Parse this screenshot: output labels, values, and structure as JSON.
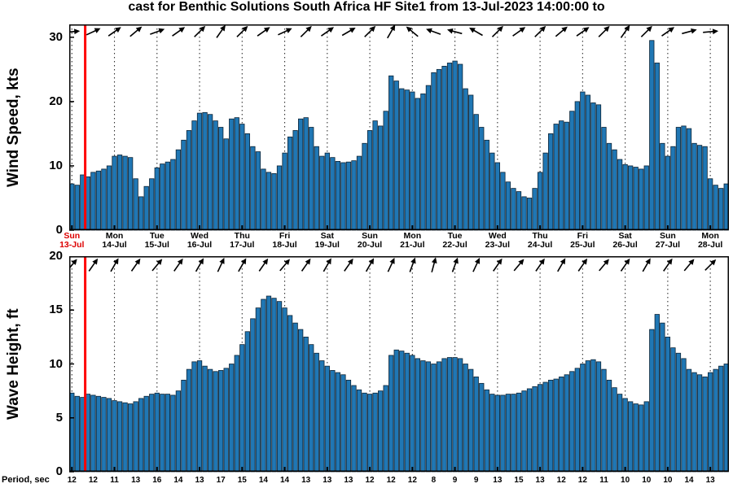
{
  "title": "cast for Benthic Solutions South Africa HF Site1 from 13-Jul-2023 14:00:00 to",
  "colors": {
    "bar_fill": "#2077b4",
    "bar_edge": "#0d2436",
    "red_line": "#ff0000",
    "grid": "#333333",
    "axis": "#000000",
    "highlight_label": "#dd0000"
  },
  "red_line_index": 3,
  "x_axis": {
    "start": "13-Jul-2023 12:00",
    "bar_interval_hours": 3,
    "arrow_interval_hours": 12,
    "day_labels": [
      {
        "day": "Sun",
        "date": "13-Jul",
        "highlight": true
      },
      {
        "day": "Mon",
        "date": "14-Jul",
        "highlight": false
      },
      {
        "day": "Tue",
        "date": "15-Jul",
        "highlight": false
      },
      {
        "day": "Wed",
        "date": "16-Jul",
        "highlight": false
      },
      {
        "day": "Thu",
        "date": "17-Jul",
        "highlight": false
      },
      {
        "day": "Fri",
        "date": "18-Jul",
        "highlight": false
      },
      {
        "day": "Sat",
        "date": "19-Jul",
        "highlight": false
      },
      {
        "day": "Sun",
        "date": "20-Jul",
        "highlight": false
      },
      {
        "day": "Mon",
        "date": "21-Jul",
        "highlight": false
      },
      {
        "day": "Tue",
        "date": "22-Jul",
        "highlight": false
      },
      {
        "day": "Wed",
        "date": "23-Jul",
        "highlight": false
      },
      {
        "day": "Thu",
        "date": "24-Jul",
        "highlight": false
      },
      {
        "day": "Fri",
        "date": "25-Jul",
        "highlight": false
      },
      {
        "day": "Sat",
        "date": "26-Jul",
        "highlight": false
      },
      {
        "day": "Sun",
        "date": "27-Jul",
        "highlight": false
      },
      {
        "day": "Mon",
        "date": "28-Jul",
        "highlight": false
      }
    ]
  },
  "chart_data": [
    {
      "type": "bar",
      "name": "wind-speed",
      "ylabel": "Wind Speed, kts",
      "ylim": [
        0,
        32
      ],
      "yticks": [
        0,
        10,
        20,
        30
      ],
      "grid": "vertical-dotted-daily",
      "legend_position": "none",
      "values": [
        7.2,
        7.0,
        8.6,
        8.3,
        9.0,
        9.2,
        9.5,
        10.0,
        11.5,
        11.7,
        11.5,
        11.3,
        8.0,
        5.2,
        6.8,
        8.0,
        9.7,
        10.3,
        10.6,
        11.0,
        12.5,
        14.0,
        15.5,
        17.0,
        18.2,
        18.3,
        18.0,
        17.0,
        16.0,
        14.2,
        17.3,
        17.5,
        16.5,
        15.0,
        13.0,
        12.2,
        9.5,
        9.0,
        8.8,
        10.0,
        12.0,
        14.5,
        15.5,
        17.3,
        17.5,
        16.0,
        13.0,
        11.5,
        12.0,
        11.3,
        10.7,
        10.5,
        10.6,
        10.8,
        11.5,
        13.5,
        15.5,
        17.0,
        16.2,
        18.5,
        24.0,
        23.2,
        22.0,
        21.8,
        21.5,
        20.5,
        21.2,
        22.5,
        24.5,
        25.0,
        25.5,
        26.0,
        26.3,
        25.8,
        22.0,
        21.0,
        18.0,
        16.0,
        14.0,
        12.0,
        10.5,
        9.0,
        7.5,
        6.5,
        6.0,
        5.2,
        5.0,
        6.5,
        9.0,
        12.0,
        15.0,
        16.5,
        17.0,
        16.8,
        18.5,
        20.0,
        21.5,
        21.0,
        19.8,
        19.5,
        16.0,
        13.5,
        12.5,
        11.0,
        10.2,
        10.0,
        9.8,
        9.5,
        10.0,
        29.5,
        26.0,
        13.5,
        11.5,
        13.0,
        16.0,
        16.2,
        15.8,
        13.5,
        13.2,
        13.0,
        8.0,
        7.0,
        6.5,
        7.2
      ],
      "direction_arrows_deg": [
        5,
        25,
        35,
        40,
        20,
        35,
        45,
        55,
        45,
        35,
        25,
        45,
        35,
        30,
        45,
        60,
        140,
        160,
        165,
        150,
        45,
        35,
        45,
        40,
        35,
        45,
        55,
        45,
        35,
        15,
        5
      ]
    },
    {
      "type": "bar",
      "name": "wave-height",
      "ylabel": "Wave Height, ft",
      "ylim": [
        0,
        20
      ],
      "yticks": [
        0,
        5,
        10,
        15,
        20
      ],
      "grid": "vertical-dotted-daily",
      "legend_position": "none",
      "values": [
        7.3,
        7.0,
        6.9,
        7.2,
        7.1,
        7.0,
        6.9,
        6.8,
        6.6,
        6.5,
        6.4,
        6.3,
        6.5,
        6.8,
        7.0,
        7.2,
        7.3,
        7.2,
        7.2,
        7.1,
        7.5,
        8.5,
        9.5,
        10.2,
        10.3,
        9.8,
        9.5,
        9.3,
        9.4,
        9.6,
        10.0,
        10.8,
        11.8,
        13.0,
        14.2,
        15.2,
        16.0,
        16.3,
        16.1,
        15.8,
        15.2,
        14.5,
        13.8,
        13.2,
        12.5,
        11.8,
        11.0,
        10.3,
        9.8,
        9.4,
        9.2,
        9.0,
        8.5,
        8.0,
        7.6,
        7.3,
        7.2,
        7.3,
        7.5,
        8.0,
        10.8,
        11.3,
        11.2,
        11.0,
        10.8,
        10.5,
        10.3,
        10.2,
        10.0,
        10.2,
        10.5,
        10.6,
        10.6,
        10.5,
        10.0,
        9.5,
        8.8,
        8.2,
        7.6,
        7.2,
        7.1,
        7.1,
        7.2,
        7.2,
        7.3,
        7.5,
        7.7,
        7.9,
        8.1,
        8.3,
        8.5,
        8.6,
        8.8,
        9.0,
        9.3,
        9.6,
        10.0,
        10.3,
        10.4,
        10.2,
        9.5,
        8.5,
        7.8,
        7.2,
        6.8,
        6.5,
        6.3,
        6.2,
        6.5,
        13.2,
        14.6,
        13.8,
        12.5,
        11.5,
        11.0,
        10.5,
        9.5,
        9.2,
        9.0,
        8.8,
        9.2,
        9.5,
        9.8,
        10.0
      ],
      "direction_arrows_deg": [
        50,
        55,
        60,
        55,
        50,
        55,
        60,
        65,
        60,
        55,
        50,
        55,
        60,
        55,
        60,
        65,
        70,
        75,
        70,
        65,
        55,
        50,
        55,
        60,
        55,
        50,
        55,
        60,
        55,
        50,
        45
      ]
    }
  ],
  "period": {
    "label": "Period, sec",
    "values": [
      12,
      12,
      11,
      13,
      16,
      14,
      13,
      17,
      15,
      14,
      14,
      13,
      13,
      13,
      12,
      12,
      12,
      8,
      9,
      9,
      13,
      15,
      13,
      12,
      12,
      11,
      10,
      10,
      10,
      14,
      13
    ]
  }
}
